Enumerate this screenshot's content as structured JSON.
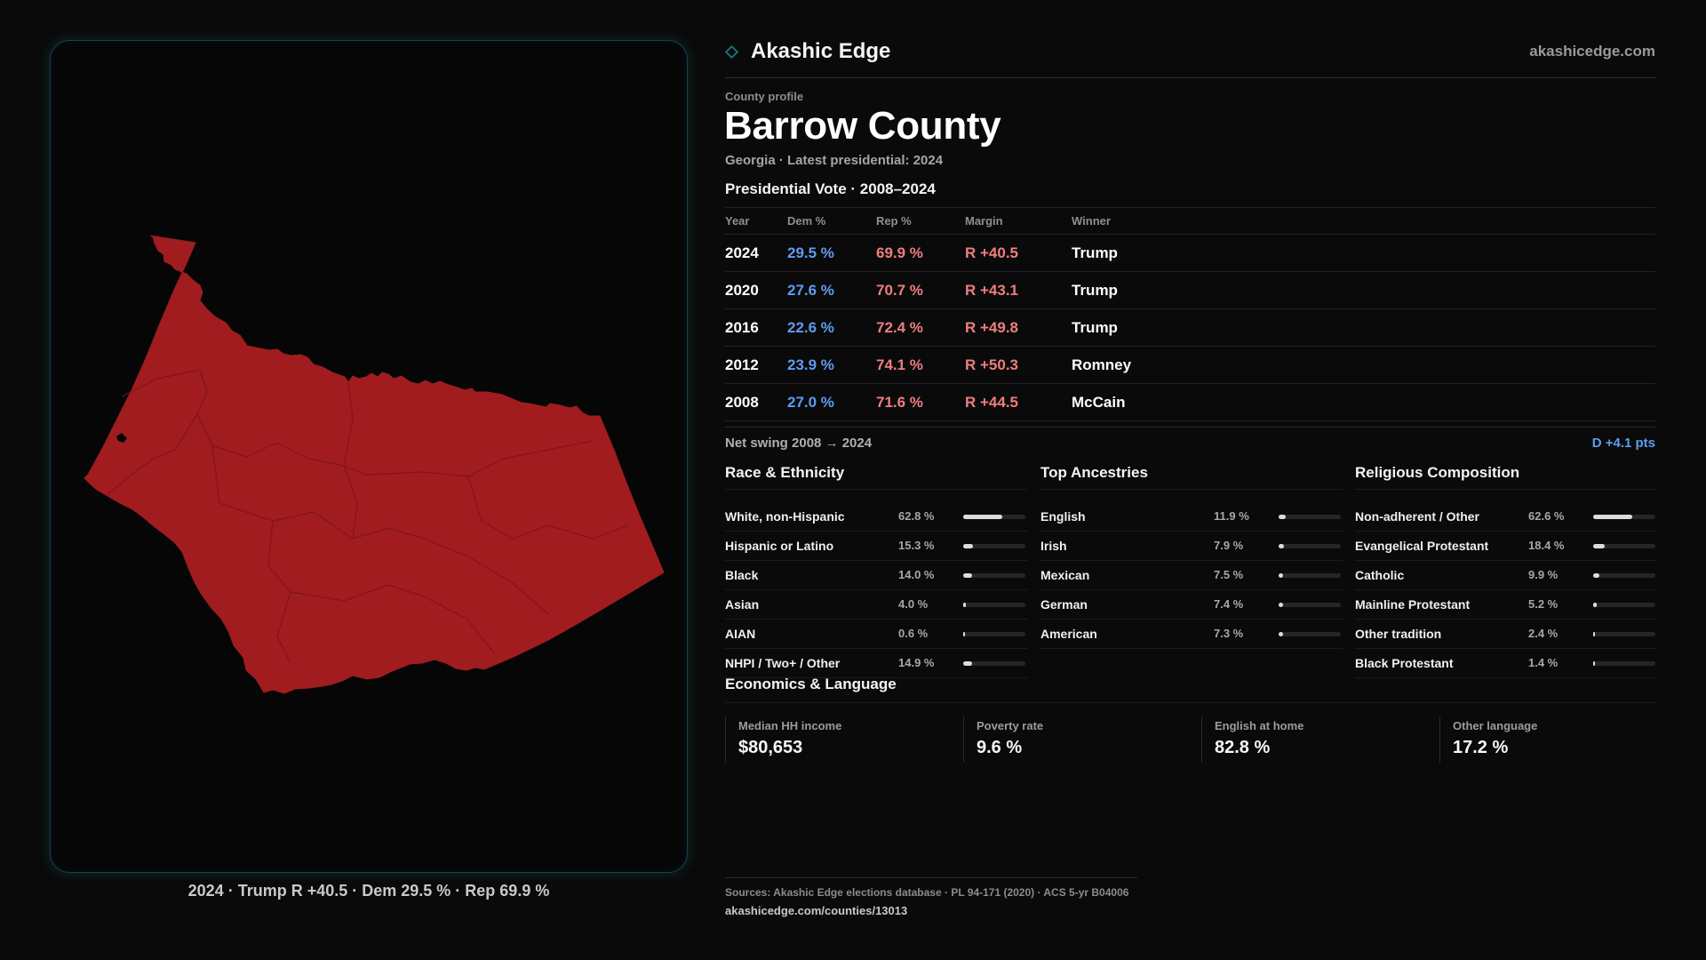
{
  "brand": {
    "name": "Akashic Edge",
    "site": "akashicedge.com"
  },
  "profile": {
    "kicker": "County profile",
    "county": "Barrow County",
    "subline": "Georgia · Latest presidential: 2024"
  },
  "map": {
    "caption": "2024 · Trump R +40.5 · Dem 29.5 % · Rep 69.9 %",
    "fill_color": "#a01c1f",
    "border_color": "#16444a"
  },
  "presidential": {
    "title": "Presidential Vote · 2008–2024",
    "headers": {
      "year": "Year",
      "dem": "Dem %",
      "rep": "Rep %",
      "margin": "Margin",
      "winner": "Winner"
    },
    "rows": [
      {
        "year": "2024",
        "dem": "29.5 %",
        "rep": "69.9 %",
        "margin": "R +40.5",
        "winner": "Trump"
      },
      {
        "year": "2020",
        "dem": "27.6 %",
        "rep": "70.7 %",
        "margin": "R +43.1",
        "winner": "Trump"
      },
      {
        "year": "2016",
        "dem": "22.6 %",
        "rep": "72.4 %",
        "margin": "R +49.8",
        "winner": "Trump"
      },
      {
        "year": "2012",
        "dem": "23.9 %",
        "rep": "74.1 %",
        "margin": "R +50.3",
        "winner": "Romney"
      },
      {
        "year": "2008",
        "dem": "27.0 %",
        "rep": "71.6 %",
        "margin": "R +44.5",
        "winner": "McCain"
      }
    ],
    "colors": {
      "dem": "#5f9cf0",
      "rep": "#ef7e7e"
    }
  },
  "swing": {
    "label": "Net swing 2008 → 2024",
    "value": "D +4.1 pts"
  },
  "race": {
    "title": "Race & Ethnicity",
    "rows": [
      {
        "label": "White, non-Hispanic",
        "value": "62.8 %",
        "pct": 62.8
      },
      {
        "label": "Hispanic or Latino",
        "value": "15.3 %",
        "pct": 15.3
      },
      {
        "label": "Black",
        "value": "14.0 %",
        "pct": 14.0
      },
      {
        "label": "Asian",
        "value": "4.0 %",
        "pct": 4.0
      },
      {
        "label": "AIAN",
        "value": "0.6 %",
        "pct": 0.6
      },
      {
        "label": "NHPI / Two+ / Other",
        "value": "14.9 %",
        "pct": 14.9
      }
    ]
  },
  "ancestry": {
    "title": "Top Ancestries",
    "rows": [
      {
        "label": "English",
        "value": "11.9 %",
        "pct": 11.9
      },
      {
        "label": "Irish",
        "value": "7.9 %",
        "pct": 7.9
      },
      {
        "label": "Mexican",
        "value": "7.5 %",
        "pct": 7.5
      },
      {
        "label": "German",
        "value": "7.4 %",
        "pct": 7.4
      },
      {
        "label": "American",
        "value": "7.3 %",
        "pct": 7.3
      }
    ]
  },
  "religion": {
    "title": "Religious Composition",
    "rows": [
      {
        "label": "Non-adherent / Other",
        "value": "62.6 %",
        "pct": 62.6
      },
      {
        "label": "Evangelical Protestant",
        "value": "18.4 %",
        "pct": 18.4
      },
      {
        "label": "Catholic",
        "value": "9.9 %",
        "pct": 9.9
      },
      {
        "label": "Mainline Protestant",
        "value": "5.2 %",
        "pct": 5.2
      },
      {
        "label": "Other tradition",
        "value": "2.4 %",
        "pct": 2.4
      },
      {
        "label": "Black Protestant",
        "value": "1.4 %",
        "pct": 1.4
      }
    ]
  },
  "economics": {
    "title": "Economics & Language",
    "items": [
      {
        "label": "Median HH income",
        "value": "$80,653"
      },
      {
        "label": "Poverty rate",
        "value": "9.6 %"
      },
      {
        "label": "English at home",
        "value": "82.8 %"
      },
      {
        "label": "Other language",
        "value": "17.2 %"
      }
    ]
  },
  "sources": {
    "text": "Sources: Akashic Edge elections database · PL 94-171 (2020) · ACS 5-yr B04006",
    "url": "akashicedge.com/counties/13013"
  }
}
